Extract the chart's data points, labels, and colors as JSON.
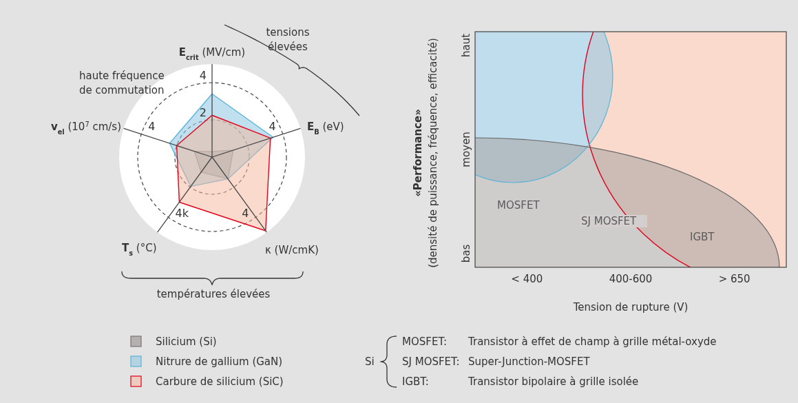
{
  "chart_data": [
    {
      "type": "radar",
      "categories": [
        "E$_{crit}$ (MV/cm)",
        "E$_{B}$ (eV)",
        "κ (W/cmK)",
        "T$_{s}$ (°C)",
        "v$_{el}$ (10$^{7}$ cm/s)"
      ],
      "ylim": [
        0,
        5
      ],
      "yticks": [
        {
          "value": 2,
          "label": "2"
        },
        {
          "value": 4,
          "label": "4"
        }
      ],
      "grid": true,
      "legend": "bottom",
      "series": [
        {
          "name": "Silicium (Si)",
          "color": "#7a7474",
          "values": [
            0.3,
            1.2,
            1.45,
            1.0,
            1.0
          ]
        },
        {
          "name": "Nitrure de gallium (GaN)",
          "color": "#5ab4d8",
          "values": [
            3.4,
            3.45,
            1.45,
            1.95,
            2.4
          ]
        },
        {
          "name": "Carbure de silicium (SiC)",
          "color": "#e2001a",
          "values": [
            2.25,
            3.3,
            4.9,
            3.0,
            2.0
          ]
        }
      ],
      "annotations": [
        "haute fréquence\nde commutation",
        "tensions\nélevées",
        "températures élevées",
        "4",
        "4",
        "4k",
        "4"
      ]
    },
    {
      "type": "other",
      "xlabel": "Tension de rupture (V)",
      "ylabel": "«Performance»\n(densité de puissance, fréquence, efficacité)",
      "categories": [
        "< 400",
        "400-600",
        "> 650"
      ],
      "y_categories": [
        "haut",
        "moyen",
        "bas"
      ],
      "annotations": [
        "MOSFET",
        "SJ MOSFET",
        "IGBT",
        "Si",
        "MOSFET:",
        "Transistor à effet de champ à grille métal-oxyde",
        "SJ MOSFET:",
        "Super-Junction-MOSFET",
        "IGBT:",
        "Transistor bipolaire à grille isolée"
      ]
    }
  ]
}
